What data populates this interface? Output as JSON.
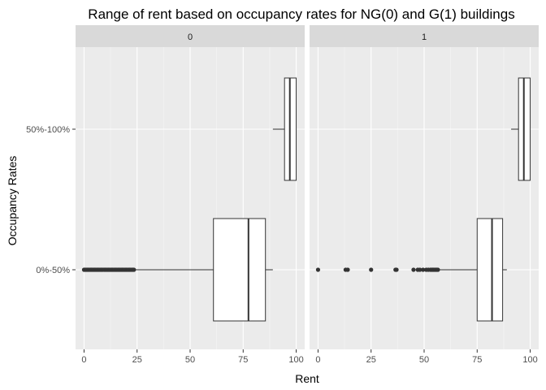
{
  "chart_data": {
    "type": "boxplot",
    "title": "Range of rent based on occupancy rates for NG(0) and G(1) buildings",
    "xlabel": "Rent",
    "ylabel": "Occupancy Rates",
    "categories": [
      "0%-50%",
      "50%-100%"
    ],
    "xlim": [
      -4,
      104
    ],
    "xticks": [
      0,
      25,
      50,
      75,
      100
    ],
    "grid": true,
    "facets": [
      {
        "label": "0",
        "boxes": [
          {
            "category": "0%-50%",
            "q1": 61,
            "median": 77.5,
            "q3": 85.5,
            "whisker_low": 24,
            "whisker_high": 89,
            "outliers": [
              0,
              0.5,
              1,
              1.5,
              2,
              2.5,
              3,
              3.5,
              4,
              4.5,
              5,
              5.5,
              6,
              6.5,
              7,
              7.5,
              8,
              8.5,
              9,
              9.5,
              10,
              10.5,
              11,
              11.5,
              12,
              12.5,
              13,
              13.5,
              14,
              14.5,
              15,
              15.5,
              16,
              16.5,
              17,
              17.5,
              18,
              18.5,
              19,
              19.5,
              20,
              20.5,
              21,
              21.5,
              22,
              22.5,
              23,
              23.5
            ]
          },
          {
            "category": "50%-100%",
            "q1": 94.5,
            "median": 97,
            "q3": 100,
            "whisker_low": 89,
            "whisker_high": 100,
            "outliers": []
          }
        ]
      },
      {
        "label": "1",
        "boxes": [
          {
            "category": "0%-50%",
            "q1": 75,
            "median": 82,
            "q3": 87,
            "whisker_low": 57,
            "whisker_high": 89,
            "outliers": [
              0,
              13,
              14,
              25,
              36.5,
              37,
              45,
              47,
              48,
              49.5,
              51,
              52,
              53,
              53.5,
              54,
              54.5,
              55,
              55.5,
              56,
              56.5
            ]
          },
          {
            "category": "50%-100%",
            "q1": 94.5,
            "median": 97,
            "q3": 100,
            "whisker_low": 91,
            "whisker_high": 100,
            "outliers": []
          }
        ]
      }
    ]
  }
}
